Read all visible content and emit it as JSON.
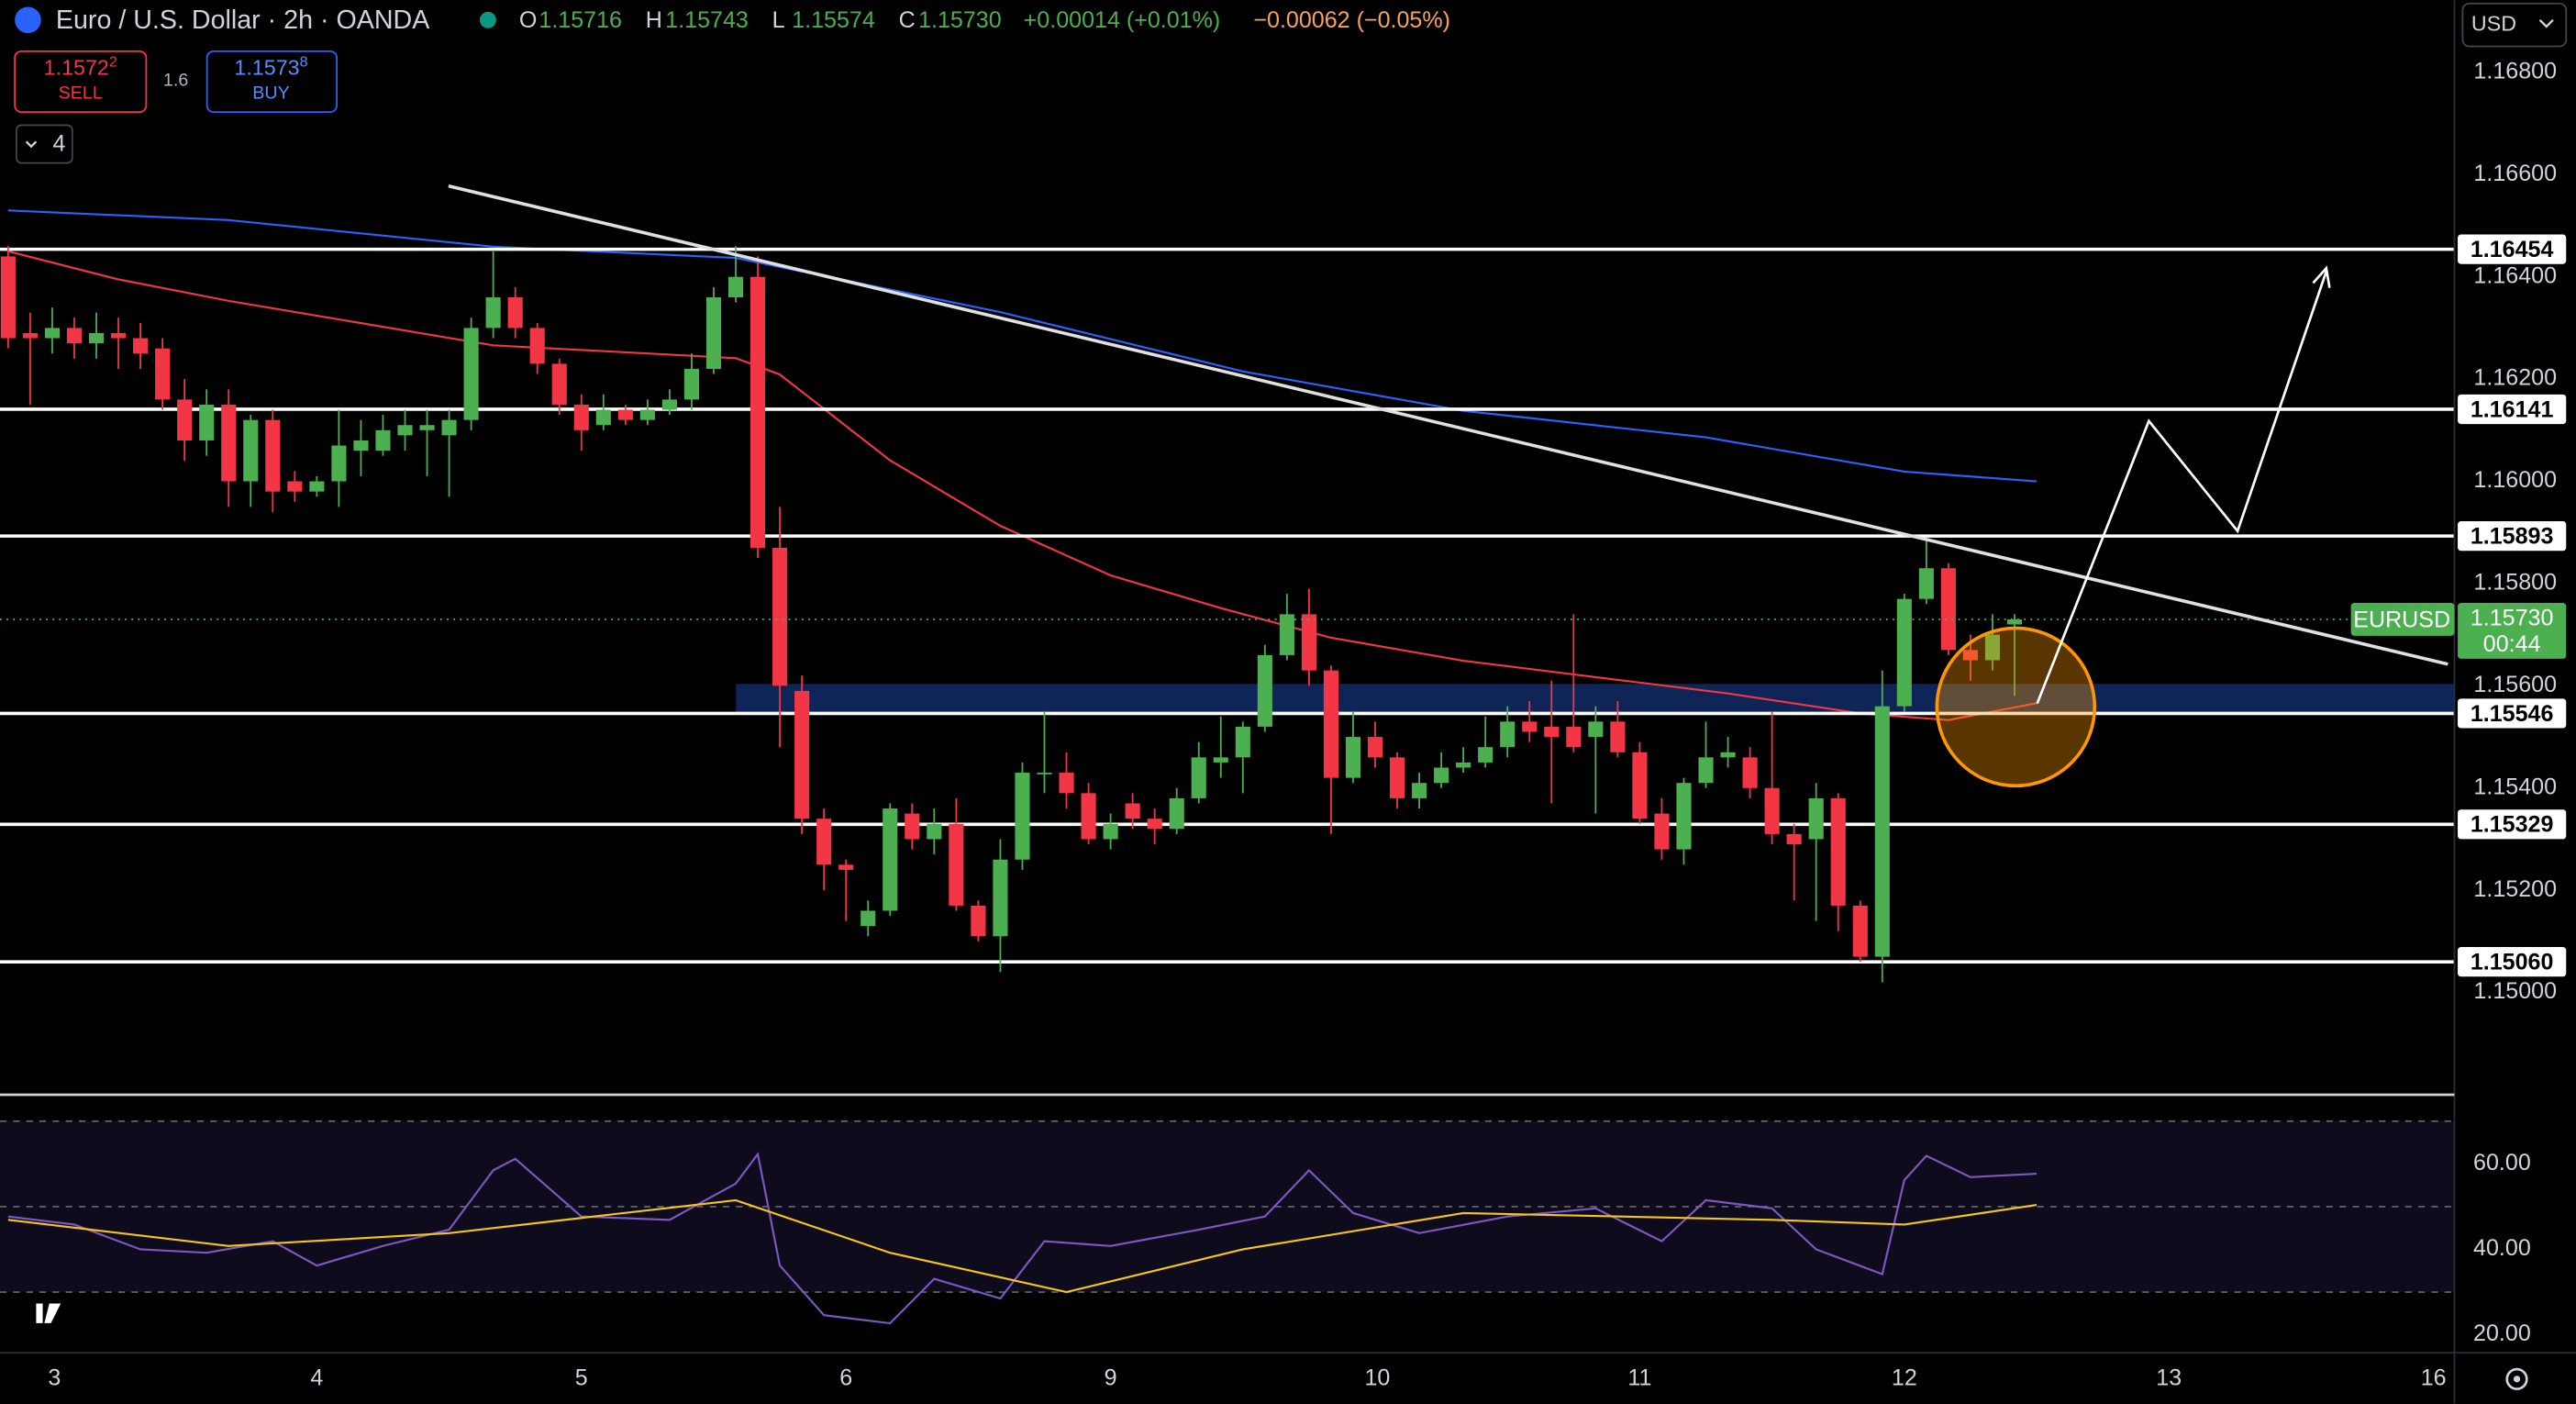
{
  "header": {
    "title": "Euro / U.S. Dollar · 2h · OANDA",
    "ohlc": [
      {
        "key": "O",
        "value": "1.15716"
      },
      {
        "key": "H",
        "value": "1.15743"
      },
      {
        "key": "L",
        "value": "1.15574"
      },
      {
        "key": "C",
        "value": "1.15730"
      }
    ],
    "change": "+0.00014 (+0.01%)",
    "change2": "−0.00062 (−0.05%)",
    "sell": {
      "price": "1.1572",
      "pip": "2",
      "label": "SELL"
    },
    "spread": "1.6",
    "buy": {
      "price": "1.1573",
      "pip": "8",
      "label": "BUY"
    },
    "indicators": "4",
    "currency": "USD"
  },
  "chart_data": {
    "type": "candlestick",
    "up_color": "#4caf50",
    "down_color": "#f23645",
    "xlim": [
      -0.37,
      110.95
    ],
    "ylim": [
      1.148,
      1.16941
    ],
    "xticks": [
      {
        "value": 2.1,
        "label": "3"
      },
      {
        "value": 14,
        "label": "4"
      },
      {
        "value": 26,
        "label": "5"
      },
      {
        "value": 38,
        "label": "6"
      },
      {
        "value": 50,
        "label": "9"
      },
      {
        "value": 62.1,
        "label": "10"
      },
      {
        "value": 74,
        "label": "11"
      },
      {
        "value": 86,
        "label": "12"
      },
      {
        "value": 98,
        "label": "13"
      },
      {
        "value": 110,
        "label": "16"
      }
    ],
    "yticks": [
      {
        "value": 1.168,
        "label": "1.16800"
      },
      {
        "value": 1.166,
        "label": "1.16600"
      },
      {
        "value": 1.164,
        "label": "1.16400"
      },
      {
        "value": 1.162,
        "label": "1.16200"
      },
      {
        "value": 1.16,
        "label": "1.16000"
      },
      {
        "value": 1.158,
        "label": "1.15800"
      },
      {
        "value": 1.156,
        "label": "1.15600"
      },
      {
        "value": 1.154,
        "label": "1.15400"
      },
      {
        "value": 1.152,
        "label": "1.15200"
      },
      {
        "value": 1.15,
        "label": "1.15000"
      }
    ],
    "grid": false,
    "levels": [
      1.16454,
      1.16141,
      1.15893,
      1.15546,
      1.15329,
      {
        "value": 1.1506,
        "label": "1.15060"
      }
    ],
    "last": {
      "symbol": "EURUSD",
      "price": {
        "value": 1.1573,
        "label": "1.15730"
      },
      "countdown": "00:44"
    },
    "candles": [
      [
        1.1644,
        1.1646,
        1.1626,
        1.1628
      ],
      [
        1.1629,
        1.1633,
        1.1615,
        1.1628
      ],
      [
        1.1628,
        1.1634,
        1.1625,
        1.163
      ],
      [
        1.163,
        1.1632,
        1.1624,
        1.1627
      ],
      [
        1.1627,
        1.1633,
        1.1624,
        1.1629
      ],
      [
        1.1629,
        1.1632,
        1.1622,
        1.1628
      ],
      [
        1.1628,
        1.1631,
        1.1622,
        1.1625
      ],
      [
        1.1626,
        1.1628,
        1.1614,
        1.1616
      ],
      [
        1.1616,
        1.162,
        1.1604,
        1.1608
      ],
      [
        1.1608,
        1.1618,
        1.1605,
        1.1615
      ],
      [
        1.1615,
        1.1618,
        1.1595,
        1.16
      ],
      [
        1.16,
        1.1613,
        1.1595,
        1.1612
      ],
      [
        1.1612,
        1.1614,
        1.1594,
        1.1598
      ],
      [
        1.16,
        1.1602,
        1.1596,
        1.1598
      ],
      [
        1.1598,
        1.1601,
        1.1597,
        1.16
      ],
      [
        1.16,
        1.1614,
        1.1595,
        1.1607
      ],
      [
        1.1606,
        1.1612,
        1.1601,
        1.1608
      ],
      [
        1.1606,
        1.1613,
        1.1605,
        1.161
      ],
      [
        1.1609,
        1.1614,
        1.1606,
        1.1611
      ],
      [
        1.161,
        1.1614,
        1.1601,
        1.1611
      ],
      [
        1.1609,
        1.1614,
        1.1597,
        1.1612
      ],
      [
        1.1612,
        1.1632,
        1.161,
        1.163
      ],
      [
        1.163,
        1.1645,
        1.1628,
        1.1636
      ],
      [
        1.1636,
        1.1638,
        1.1628,
        1.163
      ],
      [
        1.163,
        1.1631,
        1.1621,
        1.1623
      ],
      [
        1.1623,
        1.1624,
        1.1613,
        1.1615
      ],
      [
        1.1615,
        1.1617,
        1.1606,
        1.161
      ],
      [
        1.1611,
        1.1617,
        1.161,
        1.1614
      ],
      [
        1.1614,
        1.1615,
        1.1611,
        1.1612
      ],
      [
        1.1612,
        1.1616,
        1.1611,
        1.1614
      ],
      [
        1.1614,
        1.1618,
        1.1613,
        1.1616
      ],
      [
        1.1616,
        1.1625,
        1.1614,
        1.1622
      ],
      [
        1.1622,
        1.1638,
        1.1621,
        1.1636
      ],
      [
        1.1636,
        1.1646,
        1.1635,
        1.164
      ],
      [
        1.164,
        1.1644,
        1.1585,
        1.1587
      ],
      [
        1.1587,
        1.1595,
        1.1548,
        1.156
      ],
      [
        1.1559,
        1.1562,
        1.1531,
        1.1534
      ],
      [
        1.1534,
        1.1536,
        1.152,
        1.1525
      ],
      [
        1.1525,
        1.1526,
        1.1514,
        1.1524
      ],
      [
        1.1513,
        1.1518,
        1.1511,
        1.1516
      ],
      [
        1.1516,
        1.1537,
        1.1515,
        1.1536
      ],
      [
        1.1535,
        1.1537,
        1.1528,
        1.153
      ],
      [
        1.153,
        1.1536,
        1.1527,
        1.1533
      ],
      [
        1.1533,
        1.1538,
        1.1516,
        1.1517
      ],
      [
        1.1517,
        1.1518,
        1.151,
        1.1511
      ],
      [
        1.1511,
        1.153,
        1.1504,
        1.1526
      ],
      [
        1.1526,
        1.1545,
        1.1524,
        1.1543
      ],
      [
        1.1543,
        1.1555,
        1.1539,
        1.1543
      ],
      [
        1.1543,
        1.1547,
        1.1536,
        1.1539
      ],
      [
        1.1539,
        1.1541,
        1.1529,
        1.153
      ],
      [
        1.153,
        1.1535,
        1.1528,
        1.1533
      ],
      [
        1.1537,
        1.1539,
        1.1532,
        1.1534
      ],
      [
        1.1534,
        1.1536,
        1.1529,
        1.1532
      ],
      [
        1.1532,
        1.154,
        1.1531,
        1.1538
      ],
      [
        1.1538,
        1.1549,
        1.1537,
        1.1546
      ],
      [
        1.1545,
        1.1554,
        1.1542,
        1.1546
      ],
      [
        1.1546,
        1.1553,
        1.1539,
        1.1552
      ],
      [
        1.1552,
        1.1568,
        1.1551,
        1.1566
      ],
      [
        1.1566,
        1.1578,
        1.1565,
        1.1574
      ],
      [
        1.1574,
        1.1579,
        1.156,
        1.1563
      ],
      [
        1.1563,
        1.1564,
        1.1531,
        1.1542
      ],
      [
        1.1542,
        1.1555,
        1.1541,
        1.155
      ],
      [
        1.155,
        1.1553,
        1.1544,
        1.1546
      ],
      [
        1.1546,
        1.1547,
        1.1536,
        1.1538
      ],
      [
        1.1538,
        1.1543,
        1.1536,
        1.1541
      ],
      [
        1.1541,
        1.1547,
        1.154,
        1.1544
      ],
      [
        1.1544,
        1.1548,
        1.1543,
        1.1545
      ],
      [
        1.1545,
        1.1554,
        1.1544,
        1.1548
      ],
      [
        1.1548,
        1.1556,
        1.1546,
        1.1553
      ],
      [
        1.1553,
        1.1557,
        1.1549,
        1.1551
      ],
      [
        1.1552,
        1.1561,
        1.1537,
        1.155
      ],
      [
        1.1552,
        1.1574,
        1.1547,
        1.1548
      ],
      [
        1.155,
        1.1556,
        1.1535,
        1.1553
      ],
      [
        1.1553,
        1.1557,
        1.1546,
        1.1547
      ],
      [
        1.1547,
        1.1549,
        1.1533,
        1.1534
      ],
      [
        1.1535,
        1.1538,
        1.1526,
        1.1528
      ],
      [
        1.1528,
        1.1542,
        1.1525,
        1.1541
      ],
      [
        1.1541,
        1.1553,
        1.154,
        1.1546
      ],
      [
        1.1546,
        1.155,
        1.1544,
        1.1547
      ],
      [
        1.1546,
        1.1548,
        1.1538,
        1.154
      ],
      [
        1.154,
        1.1555,
        1.1529,
        1.1531
      ],
      [
        1.1531,
        1.1533,
        1.1518,
        1.1529
      ],
      [
        1.153,
        1.1541,
        1.1514,
        1.1538
      ],
      [
        1.1538,
        1.1539,
        1.1512,
        1.1517
      ],
      [
        1.1517,
        1.1518,
        1.1506,
        1.1507
      ],
      [
        1.1507,
        1.1563,
        1.1502,
        1.1556
      ],
      [
        1.1556,
        1.1578,
        1.1555,
        1.1577
      ],
      [
        1.1577,
        1.1589,
        1.1576,
        1.1583
      ],
      [
        1.1583,
        1.1584,
        1.1566,
        1.1567
      ],
      [
        1.1567,
        1.157,
        1.1561,
        1.1565
      ],
      [
        1.1565,
        1.1574,
        1.1563,
        1.157
      ],
      [
        1.1572,
        1.1574,
        1.1558,
        1.1573
      ]
    ],
    "ma": [
      {
        "color": "#2962ff",
        "x": [
          0,
          10,
          22,
          33,
          45,
          56,
          66,
          77,
          86,
          92
        ],
        "values": [
          1.1653,
          1.16511,
          1.16459,
          1.16437,
          1.16331,
          1.16215,
          1.16138,
          1.16086,
          1.16019,
          1.16
        ]
      },
      {
        "color": "#f23645",
        "x": [
          0,
          5,
          10,
          22,
          33,
          35,
          40,
          45,
          50,
          55,
          60,
          66,
          72,
          78,
          84,
          88,
          92
        ],
        "values": [
          1.1645,
          1.16395,
          1.16353,
          1.16266,
          1.16241,
          1.16209,
          1.16041,
          1.15913,
          1.15816,
          1.15752,
          1.15694,
          1.15649,
          1.15617,
          1.15585,
          1.15546,
          1.15533,
          1.15566
        ]
      }
    ],
    "rsi": {
      "ylim": [
        15.8,
        75.8
      ],
      "yticks": [
        {
          "value": 60,
          "label": "60.00"
        },
        {
          "value": 40,
          "label": "40.00"
        },
        {
          "value": 20,
          "label": "20.00"
        }
      ],
      "levels": [
        70,
        50,
        30
      ],
      "series": [
        {
          "color": "#7e57c2",
          "x": [
            0,
            3,
            6,
            9,
            12,
            14,
            17,
            20,
            22,
            23,
            26,
            30,
            33,
            34,
            35,
            37,
            40,
            42,
            45,
            47,
            50,
            54,
            57,
            59,
            61,
            64,
            68,
            72,
            75,
            77,
            80,
            82,
            85,
            86,
            87,
            89,
            92
          ],
          "values": [
            47.7,
            45.8,
            40,
            39.2,
            41.9,
            36.2,
            40.8,
            44.6,
            58.5,
            61.2,
            47.7,
            46.9,
            55.4,
            62.3,
            36.2,
            24.6,
            22.7,
            33.1,
            28.5,
            41.9,
            40.8,
            44.6,
            47.7,
            58.5,
            48.5,
            43.8,
            47.7,
            49.6,
            41.9,
            51.5,
            49.6,
            40,
            34.2,
            56.2,
            61.9,
            56.9,
            57.7
          ]
        },
        {
          "color": "#f5c518",
          "x": [
            0,
            10,
            20,
            33,
            40,
            48,
            56,
            66,
            80,
            86,
            92
          ],
          "values": [
            46.9,
            40.8,
            43.8,
            51.5,
            39.2,
            30,
            40,
            48.5,
            46.9,
            45.8,
            50.4
          ]
        }
      ]
    }
  }
}
